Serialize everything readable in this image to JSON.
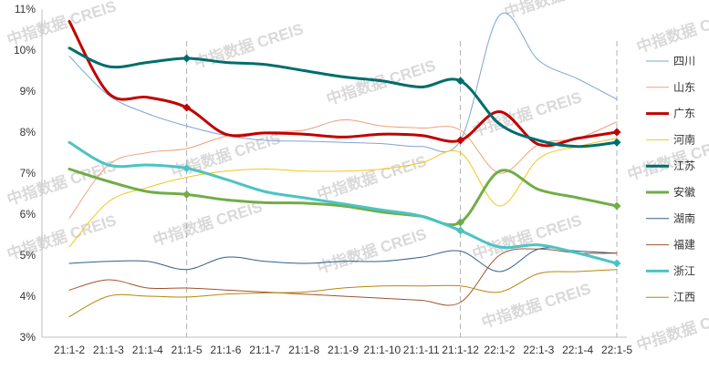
{
  "watermark": "中指数据 CREIS",
  "chart_data": {
    "type": "line",
    "title": "",
    "xlabel": "",
    "ylabel": "",
    "ylim": [
      3,
      11
    ],
    "yticks": [
      "3%",
      "4%",
      "5%",
      "6%",
      "7%",
      "8%",
      "9%",
      "10%",
      "11%"
    ],
    "categories": [
      "21:1-2",
      "21:1-3",
      "21:1-4",
      "21:1-5",
      "21:1-6",
      "21:1-7",
      "21:1-8",
      "21:1-9",
      "21:1-10",
      "21:1-11",
      "21:1-12",
      "22:1-2",
      "22:1-3",
      "22:1-4",
      "22:1-5"
    ],
    "xtick_labels": [
      "21:1-2",
      "21:1-3",
      "21:1-4",
      "21:1-5",
      "21:1-6",
      "21:1-7",
      "21:1-8",
      "21:1-9",
      "21:1-10",
      "21:1-11",
      "21:1-12",
      "22:1-2",
      "22:1-3",
      "22:1-4",
      "22:1-5"
    ],
    "grid": false,
    "legend_position": "right",
    "reference_lines_at": [
      "21:1-5",
      "21:1-12",
      "22:1-5"
    ],
    "series": [
      {
        "name": "四川",
        "color": "#7aa6d6",
        "width": 1,
        "values": [
          9.85,
          8.9,
          8.45,
          8.15,
          7.92,
          7.8,
          7.78,
          7.75,
          7.72,
          7.65,
          7.8,
          10.85,
          9.75,
          9.3,
          8.8
        ]
      },
      {
        "name": "山东",
        "color": "#f0a07a",
        "width": 1,
        "values": [
          5.9,
          7.2,
          7.5,
          7.6,
          7.9,
          8.0,
          8.05,
          8.3,
          8.15,
          8.1,
          8.05,
          7.0,
          7.7,
          7.85,
          8.25
        ]
      },
      {
        "name": "广东",
        "color": "#c00000",
        "width": 3,
        "values": [
          10.7,
          8.95,
          8.85,
          8.6,
          7.95,
          7.98,
          7.95,
          7.88,
          7.95,
          7.92,
          7.8,
          8.5,
          7.7,
          7.85,
          8.0
        ],
        "markers": [
          3,
          10,
          14
        ]
      },
      {
        "name": "河南",
        "color": "#f5c518",
        "width": 1,
        "values": [
          5.2,
          6.3,
          6.65,
          6.9,
          7.05,
          7.1,
          7.05,
          7.05,
          7.1,
          7.25,
          7.5,
          6.2,
          7.35,
          7.65,
          7.85
        ]
      },
      {
        "name": "江苏",
        "color": "#006d6d",
        "width": 3,
        "values": [
          10.05,
          9.6,
          9.7,
          9.8,
          9.7,
          9.65,
          9.5,
          9.35,
          9.25,
          9.1,
          9.25,
          8.2,
          7.8,
          7.65,
          7.75
        ],
        "markers": [
          3,
          10,
          14
        ]
      },
      {
        "name": "安徽",
        "color": "#70ad47",
        "width": 3,
        "values": [
          7.1,
          6.8,
          6.55,
          6.48,
          6.35,
          6.28,
          6.27,
          6.2,
          6.05,
          5.95,
          5.8,
          7.05,
          6.6,
          6.4,
          6.2
        ],
        "markers": [
          3,
          10,
          14
        ]
      },
      {
        "name": "湖南",
        "color": "#2f5f8f",
        "width": 1,
        "values": [
          4.8,
          4.85,
          4.85,
          4.65,
          4.95,
          4.85,
          4.8,
          4.85,
          4.85,
          4.95,
          5.1,
          4.6,
          5.15,
          5.1,
          5.05
        ]
      },
      {
        "name": "福建",
        "color": "#a0522d",
        "width": 1,
        "values": [
          4.15,
          4.4,
          4.2,
          4.2,
          4.15,
          4.1,
          4.05,
          4.0,
          3.95,
          3.9,
          3.85,
          5.0,
          5.15,
          5.05,
          5.05
        ]
      },
      {
        "name": "浙江",
        "color": "#4cc3c3",
        "width": 3,
        "values": [
          7.75,
          7.2,
          7.2,
          7.12,
          6.85,
          6.55,
          6.4,
          6.25,
          6.1,
          5.95,
          5.6,
          5.2,
          5.25,
          5.05,
          4.8
        ],
        "markers": [
          3,
          10,
          14
        ]
      },
      {
        "name": "江西",
        "color": "#b8860b",
        "width": 1,
        "values": [
          3.5,
          4.0,
          4.0,
          3.98,
          4.05,
          4.08,
          4.1,
          4.2,
          4.25,
          4.25,
          4.25,
          4.1,
          4.55,
          4.6,
          4.65
        ]
      }
    ]
  }
}
